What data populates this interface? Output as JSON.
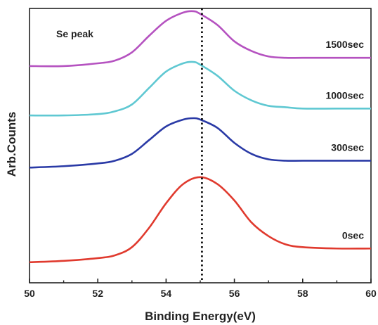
{
  "chart_data": {
    "type": "line",
    "title": "",
    "annotation": "Se peak",
    "xlabel": "Binding Energy(eV)",
    "ylabel": "Arb.Counts",
    "xlim": [
      50,
      60
    ],
    "ylim": [
      0,
      1
    ],
    "xticks": [
      "50",
      "52",
      "54",
      "56",
      "58",
      "60"
    ],
    "yticks": [],
    "grid": false,
    "legend": "none",
    "reference_line": {
      "x": 55.05,
      "style": "dotted",
      "color": "#000000"
    },
    "series": [
      {
        "name": "0sec",
        "color": "#e03a2e",
        "x": [
          50,
          51,
          52,
          52.5,
          53,
          53.5,
          54,
          54.5,
          55,
          55.5,
          56,
          56.5,
          57,
          57.5,
          58,
          59,
          60
        ],
        "y": [
          0.075,
          0.08,
          0.09,
          0.1,
          0.13,
          0.2,
          0.29,
          0.36,
          0.385,
          0.36,
          0.3,
          0.22,
          0.17,
          0.14,
          0.13,
          0.125,
          0.125
        ]
      },
      {
        "name": "300sec",
        "color": "#2a3aa6",
        "x": [
          50,
          51,
          52,
          52.5,
          53,
          53.5,
          54,
          54.5,
          54.8,
          55,
          55.5,
          56,
          56.5,
          57,
          57.5,
          58,
          59,
          60
        ],
        "y": [
          0.42,
          0.425,
          0.435,
          0.445,
          0.47,
          0.52,
          0.57,
          0.595,
          0.6,
          0.595,
          0.565,
          0.51,
          0.47,
          0.45,
          0.445,
          0.445,
          0.445,
          0.445
        ]
      },
      {
        "name": "1000sec",
        "color": "#5fc8d2",
        "x": [
          50,
          51,
          52,
          52.5,
          53,
          53.5,
          54,
          54.5,
          54.8,
          55,
          55.5,
          56,
          56.5,
          57,
          57.5,
          58,
          59,
          60
        ],
        "y": [
          0.61,
          0.61,
          0.615,
          0.625,
          0.65,
          0.71,
          0.77,
          0.8,
          0.805,
          0.795,
          0.755,
          0.7,
          0.665,
          0.645,
          0.64,
          0.635,
          0.635,
          0.635
        ]
      },
      {
        "name": "1500sec",
        "color": "#b552c0",
        "x": [
          50,
          51,
          52,
          52.5,
          53,
          53.5,
          54,
          54.5,
          54.8,
          55,
          55.5,
          56,
          56.5,
          57,
          57.5,
          58,
          59,
          60
        ],
        "y": [
          0.79,
          0.79,
          0.8,
          0.81,
          0.84,
          0.9,
          0.955,
          0.985,
          0.99,
          0.98,
          0.94,
          0.88,
          0.845,
          0.825,
          0.82,
          0.82,
          0.82,
          0.82
        ]
      }
    ]
  }
}
